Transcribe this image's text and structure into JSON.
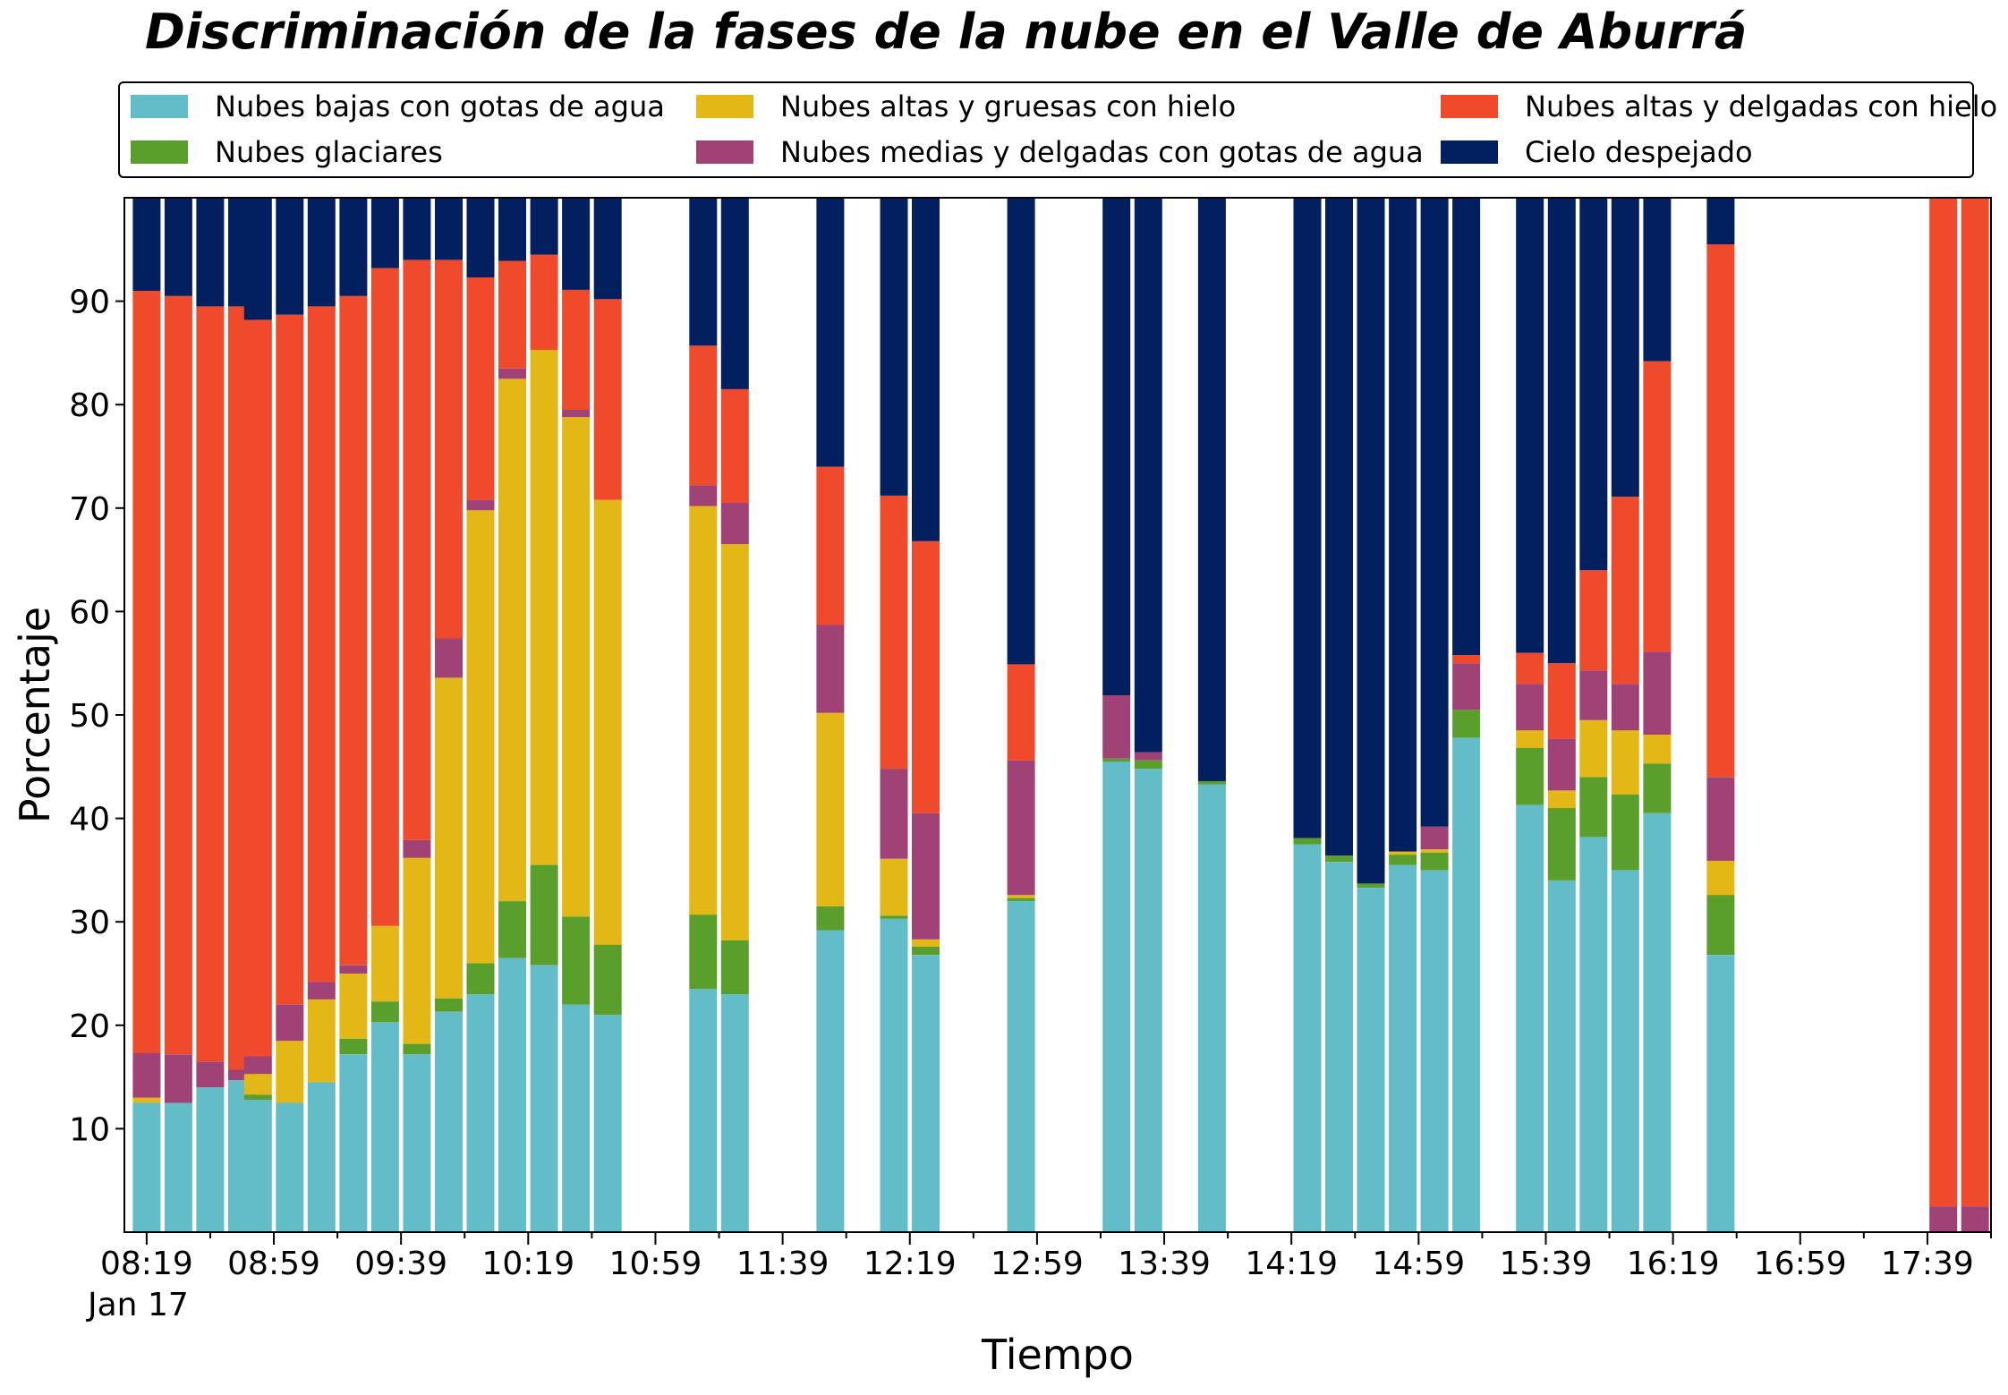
{
  "chart_data": {
    "type": "bar",
    "stacked": true,
    "title": "Discriminación de la fases de la nube en el Valle de Aburrá",
    "xlabel": "Tiempo",
    "ylabel": "Porcentaje",
    "ylim": [
      0,
      100
    ],
    "y_ticks": [
      "10",
      "20",
      "30",
      "40",
      "50",
      "60",
      "70",
      "80",
      "90"
    ],
    "x_ticks": [
      "08:19",
      "08:59",
      "09:39",
      "10:19",
      "10:59",
      "11:39",
      "12:19",
      "12:59",
      "13:39",
      "14:19",
      "14:59",
      "15:39",
      "16:19",
      "16:59",
      "17:39"
    ],
    "x_date_label": "Jan 17",
    "grid": false,
    "legend_position": "top",
    "series": [
      {
        "name": "Nubes bajas con gotas de agua",
        "color": "#62bdc8"
      },
      {
        "name": "Nubes glaciares",
        "color": "#5a9e2c"
      },
      {
        "name": "Nubes altas y gruesas con hielo",
        "color": "#e3b716"
      },
      {
        "name": "Nubes medias y delgadas con gotas de agua",
        "color": "#a04276"
      },
      {
        "name": "Nubes altas y delgadas con hielo",
        "color": "#ee4a2b"
      },
      {
        "name": "Cielo despejado",
        "color": "#021f5f"
      }
    ],
    "bars": [
      {
        "time": "08:19",
        "values": [
          12.5,
          0,
          0.5,
          4.3,
          73.7,
          9.0
        ]
      },
      {
        "time": "08:29",
        "values": [
          12.5,
          0,
          0,
          4.7,
          73.3,
          9.5
        ]
      },
      {
        "time": "08:39",
        "values": [
          14.0,
          0,
          0,
          2.5,
          73.0,
          10.5
        ]
      },
      {
        "time": "08:49",
        "values": [
          14.7,
          0,
          0,
          1.0,
          73.8,
          10.5
        ]
      },
      {
        "time": "08:54",
        "values": [
          12.8,
          0.5,
          2.0,
          1.7,
          71.2,
          11.8
        ]
      },
      {
        "time": "09:04",
        "values": [
          12.5,
          0,
          6.0,
          3.5,
          66.7,
          11.3
        ]
      },
      {
        "time": "09:14",
        "values": [
          14.5,
          0,
          8.0,
          1.7,
          65.3,
          10.5
        ]
      },
      {
        "time": "09:24",
        "values": [
          17.2,
          1.5,
          6.3,
          0.8,
          64.7,
          9.5
        ]
      },
      {
        "time": "09:34",
        "values": [
          20.3,
          2.0,
          7.3,
          0,
          63.6,
          6.8
        ]
      },
      {
        "time": "09:44",
        "values": [
          17.2,
          1.0,
          18.0,
          1.7,
          56.1,
          6.0
        ]
      },
      {
        "time": "09:54",
        "values": [
          21.3,
          1.3,
          31.0,
          3.8,
          36.6,
          6.0
        ]
      },
      {
        "time": "10:04",
        "values": [
          23.0,
          3.0,
          43.8,
          1.0,
          21.5,
          7.7
        ]
      },
      {
        "time": "10:14",
        "values": [
          26.5,
          5.5,
          50.5,
          1.0,
          10.4,
          6.1
        ]
      },
      {
        "time": "10:24",
        "values": [
          25.8,
          9.7,
          49.8,
          0,
          9.2,
          5.5
        ]
      },
      {
        "time": "10:34",
        "values": [
          22.0,
          8.5,
          48.3,
          0.7,
          11.6,
          8.9
        ]
      },
      {
        "time": "10:44",
        "values": [
          21.0,
          6.8,
          43.0,
          0,
          19.4,
          9.8
        ]
      },
      {
        "time": "11:14",
        "values": [
          23.5,
          7.2,
          39.5,
          2.0,
          13.5,
          14.3
        ]
      },
      {
        "time": "11:24",
        "values": [
          23.0,
          5.2,
          38.3,
          4.0,
          11.0,
          18.5
        ]
      },
      {
        "time": "11:54",
        "values": [
          29.2,
          2.3,
          18.7,
          8.5,
          15.3,
          26.0
        ]
      },
      {
        "time": "12:14",
        "values": [
          30.3,
          0.3,
          5.5,
          8.7,
          26.4,
          28.8
        ]
      },
      {
        "time": "12:24",
        "values": [
          26.8,
          0.8,
          0.7,
          12.2,
          26.3,
          33.2
        ]
      },
      {
        "time": "12:54",
        "values": [
          32.0,
          0.3,
          0.3,
          13.0,
          9.3,
          45.1
        ]
      },
      {
        "time": "13:24",
        "values": [
          45.5,
          0.3,
          0,
          6.1,
          0,
          48.1
        ]
      },
      {
        "time": "13:34",
        "values": [
          44.8,
          0.8,
          0,
          0.8,
          0,
          53.6
        ]
      },
      {
        "time": "13:54",
        "values": [
          43.3,
          0.3,
          0,
          0,
          0,
          56.4
        ]
      },
      {
        "time": "14:24",
        "values": [
          37.5,
          0.6,
          0,
          0,
          0,
          61.9
        ]
      },
      {
        "time": "14:34",
        "values": [
          35.8,
          0.6,
          0,
          0,
          0,
          63.6
        ]
      },
      {
        "time": "14:44",
        "values": [
          33.3,
          0.4,
          0,
          0,
          0,
          66.3
        ]
      },
      {
        "time": "14:54",
        "values": [
          35.5,
          1.0,
          0.3,
          0,
          0,
          63.2
        ]
      },
      {
        "time": "15:04",
        "values": [
          35.0,
          1.7,
          0.3,
          2.2,
          0,
          60.8
        ]
      },
      {
        "time": "15:14",
        "values": [
          47.8,
          2.7,
          0,
          4.5,
          0.8,
          44.2
        ]
      },
      {
        "time": "15:34",
        "values": [
          41.3,
          5.5,
          1.7,
          4.5,
          3.0,
          44.0
        ]
      },
      {
        "time": "15:44",
        "values": [
          34.0,
          7.0,
          1.7,
          5.0,
          7.3,
          45.0
        ]
      },
      {
        "time": "15:54",
        "values": [
          38.2,
          5.8,
          5.5,
          4.8,
          9.7,
          36.0
        ]
      },
      {
        "time": "16:04",
        "values": [
          35.0,
          7.3,
          6.2,
          4.5,
          18.1,
          28.9
        ]
      },
      {
        "time": "16:14",
        "values": [
          40.5,
          4.8,
          2.8,
          8.0,
          28.1,
          15.8
        ]
      },
      {
        "time": "16:34",
        "values": [
          26.8,
          5.8,
          3.3,
          8.1,
          51.5,
          4.5
        ]
      },
      {
        "time": "17:44",
        "values": [
          0,
          0,
          0,
          2.5,
          97.5,
          0
        ]
      },
      {
        "time": "17:54",
        "values": [
          0,
          0,
          0,
          2.5,
          97.5,
          0
        ]
      }
    ]
  }
}
